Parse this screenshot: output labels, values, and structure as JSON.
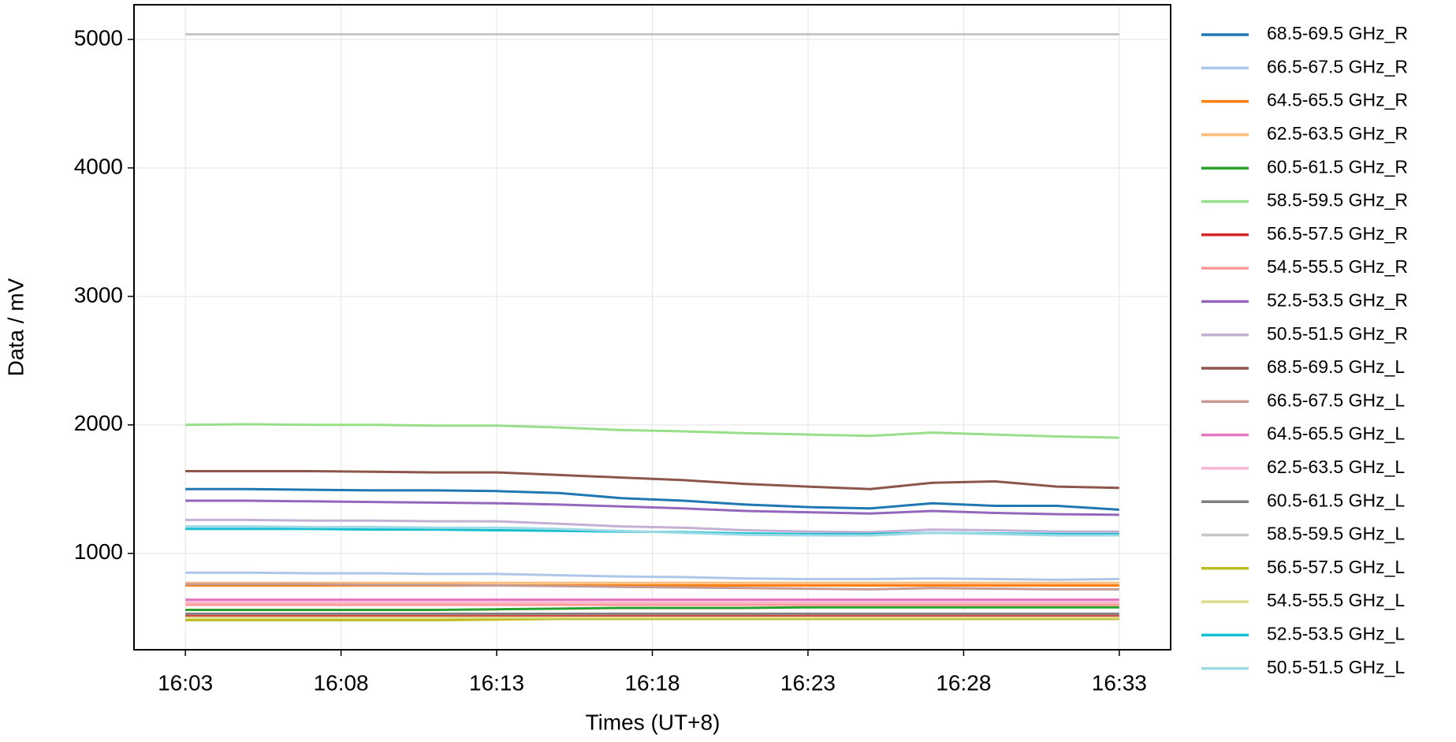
{
  "chart_data": {
    "type": "line",
    "x_label": "Times (UT+8)",
    "y_label": "Data / mV",
    "x": [
      "16:03",
      "16:05",
      "16:07",
      "16:09",
      "16:11",
      "16:13",
      "16:15",
      "16:17",
      "16:19",
      "16:21",
      "16:23",
      "16:25",
      "16:27",
      "16:29",
      "16:31",
      "16:33"
    ],
    "xlim": [
      "16:03",
      "16:33"
    ],
    "xticks": [
      "16:03",
      "16:08",
      "16:13",
      "16:18",
      "16:23",
      "16:28",
      "16:33"
    ],
    "ylim": [
      250,
      5270
    ],
    "yticks": [
      1000,
      2000,
      3000,
      4000,
      5000
    ],
    "grid": true,
    "legend": "outside-right",
    "series": [
      {
        "name": "68.5-69.5 GHz_R",
        "color": "#1f77b4",
        "values": [
          1500,
          1500,
          1495,
          1490,
          1490,
          1485,
          1470,
          1430,
          1410,
          1380,
          1360,
          1350,
          1390,
          1370,
          1370,
          1340
        ]
      },
      {
        "name": "66.5-67.5 GHz_R",
        "color": "#aec7e8",
        "values": [
          850,
          850,
          845,
          845,
          840,
          840,
          830,
          820,
          815,
          805,
          800,
          800,
          805,
          800,
          795,
          800
        ]
      },
      {
        "name": "64.5-65.5 GHz_R",
        "color": "#ff7f0e",
        "values": [
          750,
          750,
          750,
          750,
          750,
          750,
          750,
          750,
          750,
          750,
          750,
          750,
          750,
          750,
          750,
          750
        ]
      },
      {
        "name": "62.5-63.5 GHz_R",
        "color": "#ffbb78",
        "values": [
          770,
          770,
          770,
          770,
          770,
          770,
          770,
          770,
          770,
          770,
          770,
          770,
          770,
          770,
          770,
          770
        ]
      },
      {
        "name": "60.5-61.5 GHz_R",
        "color": "#2ca02c",
        "values": [
          560,
          560,
          560,
          560,
          560,
          565,
          570,
          575,
          575,
          575,
          580,
          580,
          580,
          580,
          580,
          580
        ]
      },
      {
        "name": "58.5-59.5 GHz_R",
        "color": "#98df8a",
        "values": [
          2000,
          2005,
          2000,
          2000,
          1995,
          1995,
          1980,
          1960,
          1950,
          1935,
          1925,
          1915,
          1940,
          1925,
          1910,
          1900
        ]
      },
      {
        "name": "56.5-57.5 GHz_R",
        "color": "#d62728",
        "values": [
          510,
          510,
          510,
          510,
          510,
          510,
          510,
          510,
          510,
          510,
          510,
          510,
          510,
          510,
          510,
          510
        ]
      },
      {
        "name": "54.5-55.5 GHz_R",
        "color": "#ff9896",
        "values": [
          600,
          600,
          600,
          600,
          600,
          600,
          600,
          600,
          600,
          600,
          600,
          600,
          600,
          600,
          600,
          600
        ]
      },
      {
        "name": "52.5-53.5 GHz_R",
        "color": "#9467bd",
        "values": [
          1410,
          1410,
          1405,
          1400,
          1395,
          1390,
          1380,
          1365,
          1350,
          1330,
          1320,
          1310,
          1330,
          1315,
          1305,
          1300
        ]
      },
      {
        "name": "50.5-51.5 GHz_R",
        "color": "#c5b0d5",
        "values": [
          1260,
          1260,
          1255,
          1255,
          1250,
          1250,
          1230,
          1210,
          1200,
          1180,
          1170,
          1165,
          1185,
          1180,
          1170,
          1170
        ]
      },
      {
        "name": "68.5-69.5 GHz_L",
        "color": "#8c564b",
        "values": [
          1640,
          1640,
          1640,
          1635,
          1630,
          1630,
          1610,
          1590,
          1570,
          1540,
          1520,
          1500,
          1550,
          1560,
          1520,
          1510
        ]
      },
      {
        "name": "66.5-67.5 GHz_L",
        "color": "#c49c94",
        "values": [
          760,
          760,
          760,
          755,
          755,
          750,
          745,
          740,
          735,
          730,
          725,
          720,
          730,
          725,
          720,
          720
        ]
      },
      {
        "name": "64.5-65.5 GHz_L",
        "color": "#e377c2",
        "values": [
          640,
          640,
          640,
          640,
          640,
          640,
          640,
          640,
          640,
          640,
          640,
          640,
          640,
          640,
          640,
          640
        ]
      },
      {
        "name": "62.5-63.5 GHz_L",
        "color": "#f7b6d2",
        "values": [
          620,
          620,
          620,
          620,
          620,
          620,
          620,
          620,
          620,
          620,
          620,
          620,
          620,
          620,
          620,
          620
        ]
      },
      {
        "name": "60.5-61.5 GHz_L",
        "color": "#7f7f7f",
        "values": [
          530,
          530,
          530,
          530,
          530,
          530,
          530,
          530,
          530,
          530,
          530,
          530,
          530,
          530,
          530,
          530
        ]
      },
      {
        "name": "58.5-59.5 GHz_L",
        "color": "#c7c7c7",
        "values": [
          5040,
          5040,
          5040,
          5040,
          5040,
          5040,
          5040,
          5040,
          5040,
          5040,
          5040,
          5040,
          5040,
          5040,
          5040,
          5040
        ]
      },
      {
        "name": "56.5-57.5 GHz_L",
        "color": "#bcbd22",
        "values": [
          480,
          480,
          480,
          480,
          480,
          485,
          490,
          490,
          490,
          490,
          490,
          490,
          490,
          490,
          490,
          490
        ]
      },
      {
        "name": "54.5-55.5 GHz_L",
        "color": "#dbdb8d",
        "values": [
          500,
          500,
          500,
          500,
          500,
          500,
          500,
          500,
          500,
          500,
          500,
          500,
          500,
          500,
          500,
          500
        ]
      },
      {
        "name": "52.5-53.5 GHz_L",
        "color": "#17becf",
        "values": [
          1190,
          1190,
          1190,
          1185,
          1185,
          1180,
          1175,
          1170,
          1165,
          1155,
          1150,
          1150,
          1160,
          1155,
          1150,
          1150
        ]
      },
      {
        "name": "50.5-51.5 GHz_L",
        "color": "#9edae5",
        "values": [
          1210,
          1210,
          1205,
          1205,
          1200,
          1200,
          1190,
          1175,
          1160,
          1145,
          1140,
          1140,
          1160,
          1150,
          1140,
          1140
        ]
      }
    ]
  }
}
